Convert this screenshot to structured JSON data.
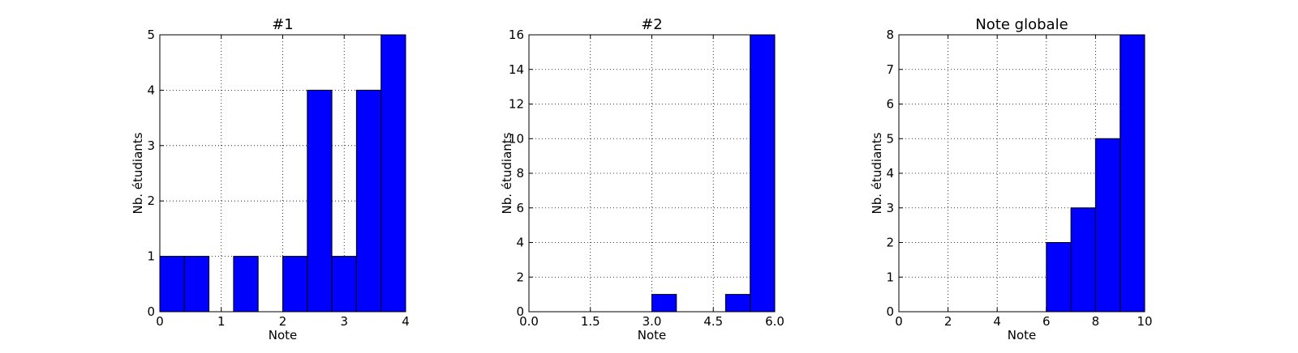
{
  "chart_data": [
    {
      "type": "histogram",
      "title": "#1",
      "xlabel": "Note",
      "ylabel": "Nb. étudiants",
      "color": "#0000ff",
      "bins": [
        0,
        0.4,
        0.8,
        1.2,
        1.6,
        2.0,
        2.4,
        2.8,
        3.2,
        3.6,
        4.0
      ],
      "values": [
        1,
        1,
        0,
        1,
        0,
        1,
        4,
        1,
        4,
        5
      ],
      "xlim": [
        0,
        4
      ],
      "xticks": [
        0,
        1,
        2,
        3,
        4
      ],
      "ylim": [
        0,
        5
      ],
      "yticks": [
        0,
        1,
        2,
        3,
        4,
        5
      ],
      "grid": true
    },
    {
      "type": "histogram",
      "title": "#2",
      "xlabel": "Note",
      "ylabel": "Nb. étudiants",
      "color": "#0000ff",
      "bins": [
        0,
        0.6,
        1.2,
        1.8,
        2.4,
        3.0,
        3.6,
        4.2,
        4.8,
        5.4,
        6.0
      ],
      "values": [
        0,
        0,
        0,
        0,
        0,
        1,
        0,
        0,
        1,
        16
      ],
      "xlim": [
        0,
        6
      ],
      "xticks": [
        {
          "value": 0,
          "label": "0.0"
        },
        1.5,
        {
          "value": 3,
          "label": "3.0"
        },
        4.5,
        {
          "value": 6,
          "label": "6.0"
        }
      ],
      "ylim": [
        0,
        16
      ],
      "yticks": [
        0,
        2,
        4,
        6,
        8,
        10,
        12,
        14,
        16
      ],
      "grid": true
    },
    {
      "type": "histogram",
      "title": "Note globale",
      "xlabel": "Note",
      "ylabel": "Nb. étudiants",
      "color": "#0000ff",
      "bins": [
        0,
        1,
        2,
        3,
        4,
        5,
        6,
        7,
        8,
        9,
        10
      ],
      "values": [
        0,
        0,
        0,
        0,
        0,
        0,
        2,
        3,
        5,
        8
      ],
      "xlim": [
        0,
        10
      ],
      "xticks": [
        0,
        2,
        4,
        6,
        8,
        10
      ],
      "ylim": [
        0,
        8
      ],
      "yticks": [
        0,
        1,
        2,
        3,
        4,
        5,
        6,
        7,
        8
      ],
      "grid": true
    }
  ]
}
